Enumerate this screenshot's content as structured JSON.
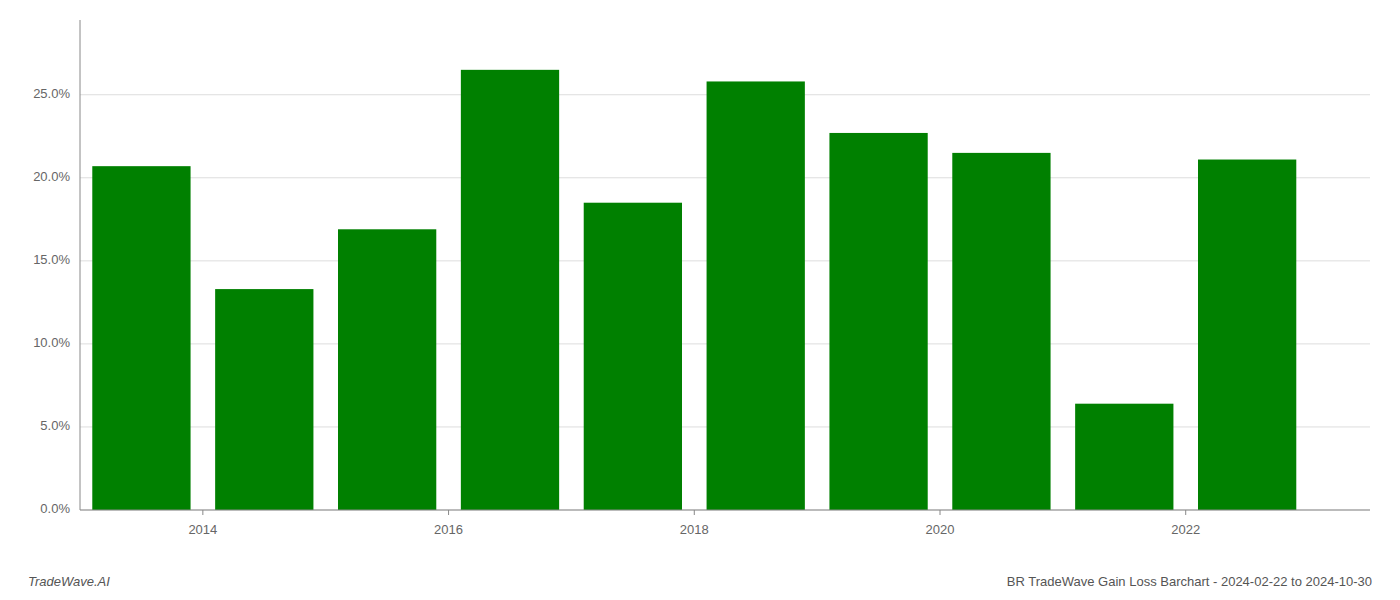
{
  "chart_data": {
    "type": "bar",
    "title": "BR TradeWave Gain Loss Barchart - 2024-02-22 to 2024-10-30",
    "annotations": [
      "TradeWave.AI"
    ],
    "x": [
      2013,
      2014,
      2015,
      2016,
      2017,
      2018,
      2019,
      2020,
      2021,
      2022
    ],
    "values": [
      0.207,
      0.133,
      0.169,
      0.265,
      0.185,
      0.258,
      0.227,
      0.215,
      0.064,
      0.211
    ],
    "color": "#008000",
    "xlim": [
      2012.5,
      2023.0
    ],
    "xticks": [
      {
        "value": 2013.5,
        "label": "2014"
      },
      {
        "value": 2015.5,
        "label": "2016"
      },
      {
        "value": 2017.5,
        "label": "2018"
      },
      {
        "value": 2019.5,
        "label": "2020"
      },
      {
        "value": 2021.5,
        "label": "2022"
      }
    ],
    "ylim": [
      0,
      0.295
    ],
    "yticks": [
      {
        "value": 0.0,
        "label": "0.0%"
      },
      {
        "value": 0.05,
        "label": "5.0%"
      },
      {
        "value": 0.1,
        "label": "10.0%"
      },
      {
        "value": 0.15,
        "label": "15.0%"
      },
      {
        "value": 0.2,
        "label": "20.0%"
      },
      {
        "value": 0.25,
        "label": "25.0%"
      }
    ],
    "grid": true
  }
}
